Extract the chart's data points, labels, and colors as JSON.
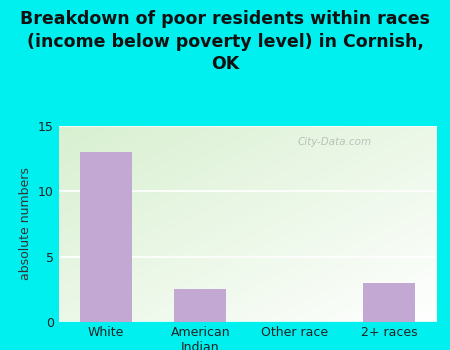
{
  "categories": [
    "White",
    "American\nIndian",
    "Other race",
    "2+ races"
  ],
  "values": [
    13,
    2.5,
    0,
    3
  ],
  "bar_color": "#c4a8d4",
  "title": "Breakdown of poor residents within races\n(income below poverty level) in Cornish,\nOK",
  "ylabel": "absolute numbers",
  "ylim": [
    0,
    15
  ],
  "yticks": [
    0,
    5,
    10,
    15
  ],
  "background_color": "#00f0f0",
  "watermark": "City-Data.com",
  "title_fontsize": 12.5,
  "ylabel_fontsize": 9,
  "tick_fontsize": 9,
  "bar_width": 0.55,
  "grid_color": "#c8dfc8"
}
